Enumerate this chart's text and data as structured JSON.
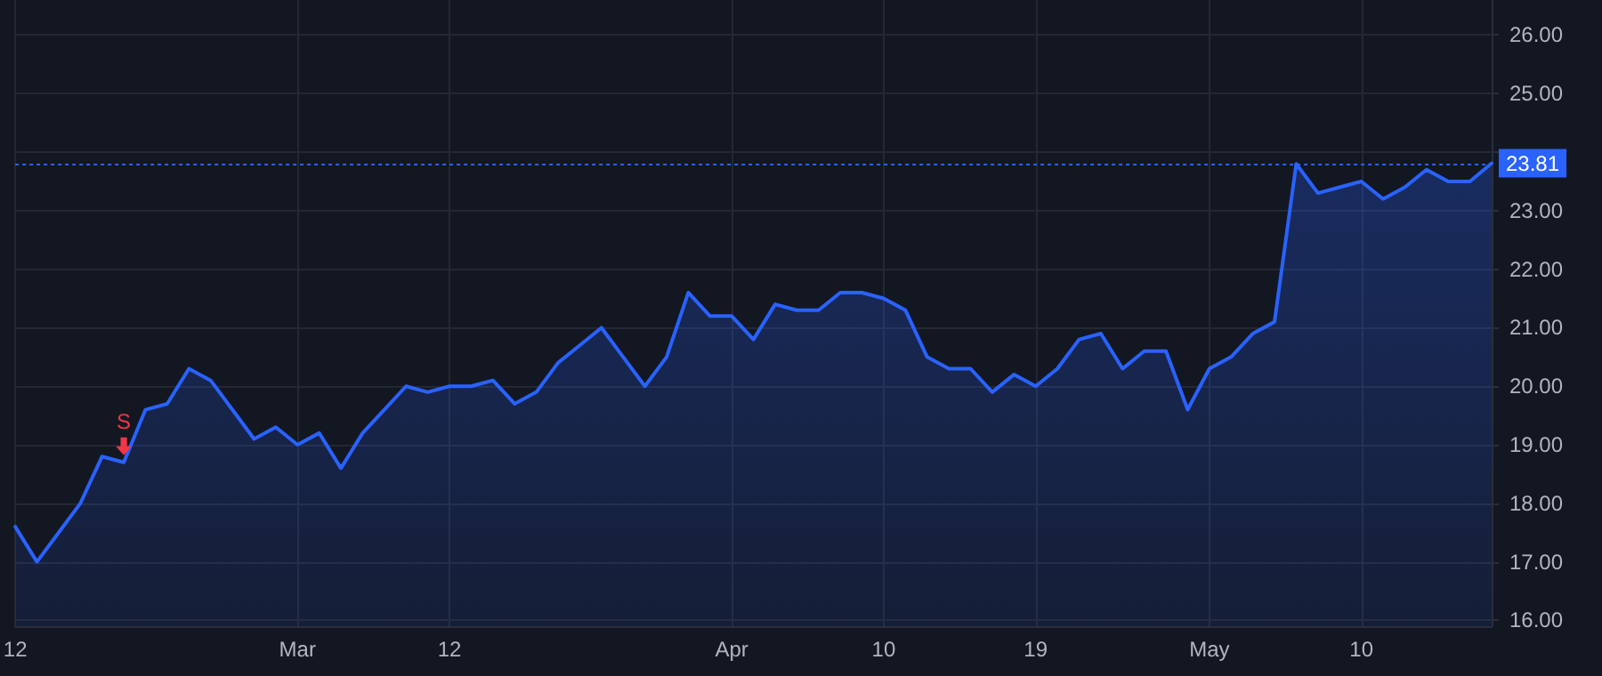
{
  "chart_data": {
    "type": "area",
    "categories": [
      "12",
      null,
      null,
      null,
      null,
      null,
      null,
      null,
      null,
      null,
      null,
      null,
      null,
      "Mar",
      null,
      null,
      null,
      null,
      null,
      null,
      "12",
      null,
      null,
      null,
      null,
      null,
      null,
      null,
      null,
      null,
      null,
      null,
      null,
      "Apr",
      null,
      null,
      null,
      null,
      null,
      null,
      "10",
      null,
      null,
      null,
      null,
      null,
      null,
      "19",
      null,
      null,
      null,
      null,
      null,
      null,
      null,
      "May",
      null,
      null,
      null,
      null,
      null,
      null,
      "10",
      null,
      null,
      null,
      null,
      null,
      null
    ],
    "series": [
      {
        "color": "#2962ff",
        "values": [
          17.6,
          17.0,
          17.5,
          18.0,
          18.8,
          18.7,
          19.6,
          19.7,
          20.3,
          20.1,
          19.6,
          19.1,
          19.3,
          19.0,
          19.2,
          18.6,
          19.2,
          19.6,
          20.0,
          19.9,
          20.0,
          20.0,
          20.1,
          19.7,
          19.9,
          20.4,
          20.7,
          21.0,
          20.5,
          20.0,
          20.5,
          21.6,
          21.2,
          21.2,
          20.8,
          21.4,
          21.3,
          21.3,
          21.6,
          21.6,
          21.5,
          21.3,
          20.5,
          20.3,
          20.3,
          19.9,
          20.2,
          20.0,
          20.3,
          20.8,
          20.9,
          20.3,
          20.6,
          20.6,
          19.6,
          20.3,
          20.5,
          20.9,
          21.1,
          23.8,
          23.3,
          23.4,
          23.5,
          23.2,
          23.4,
          23.7,
          23.5,
          23.5,
          23.81
        ]
      }
    ],
    "ylim": [
      15.9,
      26.6
    ],
    "yticks": [
      {
        "value": 16,
        "label": "16.00"
      },
      {
        "value": 17,
        "label": "17.00"
      },
      {
        "value": 18,
        "label": "18.00"
      },
      {
        "value": 19,
        "label": "19.00"
      },
      {
        "value": 20,
        "label": "20.00"
      },
      {
        "value": 21,
        "label": "21.00"
      },
      {
        "value": 22,
        "label": "22.00"
      },
      {
        "value": 23,
        "label": "23.00"
      },
      {
        "value": 24,
        "label": null
      },
      {
        "value": 25,
        "label": "25.00"
      },
      {
        "value": 26,
        "label": "26.00"
      }
    ],
    "grid": true,
    "line_style": "solid",
    "ref_lines": [
      {
        "axis": "y",
        "value": 23.81,
        "label": "23.81",
        "color": "#2962ff",
        "line_style": "dotted"
      }
    ],
    "annotations": [
      {
        "text": "S",
        "y": 18.7
      }
    ]
  }
}
